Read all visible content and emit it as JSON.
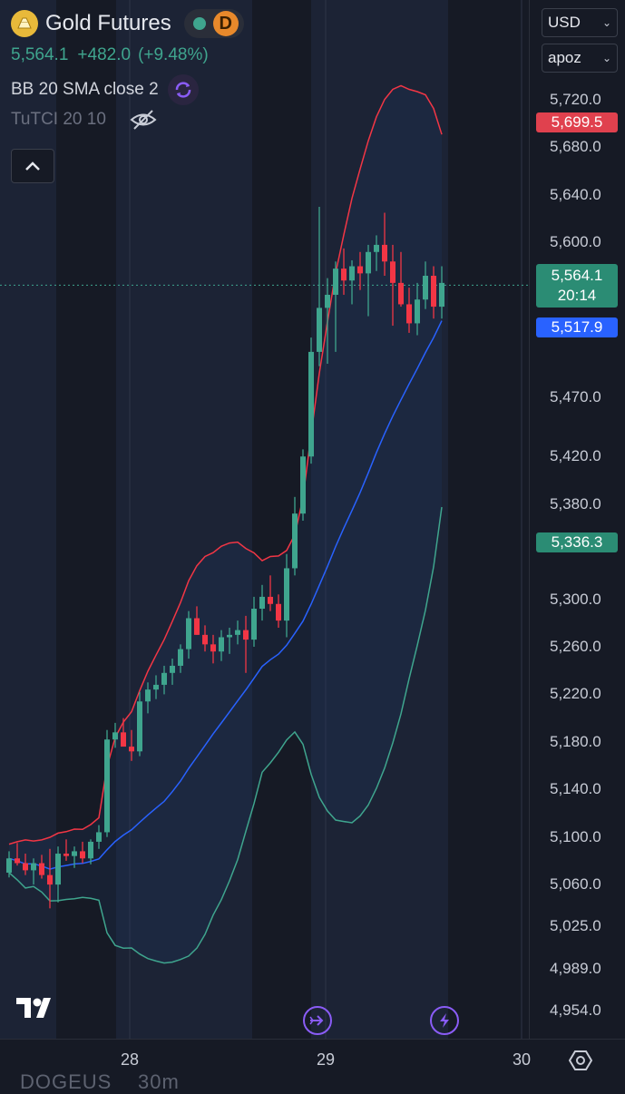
{
  "symbol": {
    "name": "Gold Futures",
    "interval": "D",
    "last_price": "5,564.1",
    "change": "+482.0",
    "change_pct": "(+9.48%)"
  },
  "indicators": {
    "bb_label": "BB 20 SMA close 2",
    "tutci_label": "TuTCI 20 10"
  },
  "controls": {
    "currency": "USD",
    "account": "apoz"
  },
  "price_tags": {
    "upper_band": "5,699.5",
    "last": "5,564.1",
    "countdown": "20:14",
    "middle_band": "5,517.9",
    "lower_band": "5,336.3"
  },
  "colors": {
    "background": "#161a25",
    "session": "#1c2335",
    "upper_band": "#f23645",
    "middle_band": "#2962ff",
    "lower_band": "#3fa58e",
    "bull": "#3fa58e",
    "bear": "#f23645"
  },
  "bottom": {
    "symbol_fragment": "DOGEUS",
    "timeframe_fragment": "30m"
  },
  "chart_data": {
    "type": "candlestick",
    "ylabels": [
      "5,720.0",
      "5,680.0",
      "5,640.0",
      "5,600.0",
      "5,470.0",
      "5,420.0",
      "5,380.0",
      "5,300.0",
      "5,260.0",
      "5,220.0",
      "5,180.0",
      "5,140.0",
      "5,100.0",
      "5,060.0",
      "5,025.0",
      "4,989.0",
      "4,954.0"
    ],
    "xlabels": [
      "28",
      "29",
      "30"
    ],
    "last_price": 5564.1,
    "series": [
      {
        "name": "BB 20 SMA close 2",
        "values": [
          5699.5,
          5517.9,
          5336.3
        ]
      }
    ],
    "candles": [
      [
        5070,
        5088,
        5066,
        5082
      ],
      [
        5082,
        5095,
        5076,
        5078
      ],
      [
        5078,
        5086,
        5068,
        5072
      ],
      [
        5072,
        5082,
        5060,
        5078
      ],
      [
        5078,
        5085,
        5065,
        5068
      ],
      [
        5068,
        5090,
        5040,
        5060
      ],
      [
        5060,
        5092,
        5045,
        5086
      ],
      [
        5086,
        5098,
        5080,
        5084
      ],
      [
        5084,
        5092,
        5074,
        5088
      ],
      [
        5088,
        5096,
        5078,
        5082
      ],
      [
        5082,
        5098,
        5077,
        5096
      ],
      [
        5096,
        5110,
        5090,
        5104
      ],
      [
        5104,
        5190,
        5100,
        5182
      ],
      [
        5182,
        5196,
        5175,
        5188
      ],
      [
        5188,
        5200,
        5178,
        5176
      ],
      [
        5176,
        5190,
        5164,
        5172
      ],
      [
        5172,
        5222,
        5168,
        5214
      ],
      [
        5214,
        5230,
        5204,
        5224
      ],
      [
        5224,
        5236,
        5216,
        5228
      ],
      [
        5228,
        5244,
        5220,
        5238
      ],
      [
        5238,
        5250,
        5228,
        5244
      ],
      [
        5244,
        5262,
        5238,
        5258
      ],
      [
        5258,
        5290,
        5250,
        5284
      ],
      [
        5284,
        5294,
        5270,
        5270
      ],
      [
        5270,
        5278,
        5256,
        5262
      ],
      [
        5262,
        5270,
        5246,
        5256
      ],
      [
        5256,
        5274,
        5248,
        5268
      ],
      [
        5268,
        5276,
        5254,
        5270
      ],
      [
        5270,
        5282,
        5262,
        5274
      ],
      [
        5274,
        5286,
        5238,
        5266
      ],
      [
        5266,
        5302,
        5260,
        5292
      ],
      [
        5292,
        5312,
        5282,
        5302
      ],
      [
        5302,
        5320,
        5290,
        5296
      ],
      [
        5296,
        5304,
        5276,
        5282
      ],
      [
        5282,
        5338,
        5268,
        5326
      ],
      [
        5326,
        5386,
        5320,
        5372
      ],
      [
        5372,
        5426,
        5366,
        5420
      ],
      [
        5420,
        5520,
        5414,
        5508
      ],
      [
        5508,
        5630,
        5496,
        5545
      ],
      [
        5545,
        5570,
        5498,
        5556
      ],
      [
        5556,
        5584,
        5508,
        5578
      ],
      [
        5578,
        5595,
        5556,
        5568
      ],
      [
        5568,
        5585,
        5548,
        5580
      ],
      [
        5580,
        5592,
        5560,
        5574
      ],
      [
        5574,
        5598,
        5538,
        5592
      ],
      [
        5592,
        5606,
        5576,
        5598
      ],
      [
        5598,
        5625,
        5572,
        5584
      ],
      [
        5584,
        5598,
        5530,
        5566
      ],
      [
        5566,
        5592,
        5546,
        5548
      ],
      [
        5548,
        5562,
        5524,
        5532
      ],
      [
        5532,
        5566,
        5522,
        5552
      ],
      [
        5552,
        5584,
        5544,
        5572
      ],
      [
        5572,
        5580,
        5536,
        5546
      ],
      [
        5546,
        5580,
        5536,
        5566
      ]
    ]
  }
}
